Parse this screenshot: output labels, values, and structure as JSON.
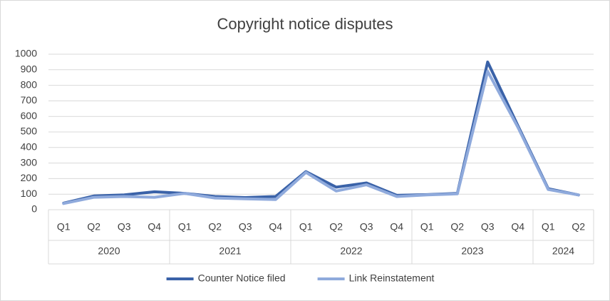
{
  "chart_data": {
    "type": "line",
    "title": "Copyright notice disputes",
    "groups": [
      {
        "name": "2020",
        "categories": [
          "Q1",
          "Q2",
          "Q3",
          "Q4"
        ]
      },
      {
        "name": "2021",
        "categories": [
          "Q1",
          "Q2",
          "Q3",
          "Q4"
        ]
      },
      {
        "name": "2022",
        "categories": [
          "Q1",
          "Q2",
          "Q3",
          "Q4"
        ]
      },
      {
        "name": "2023",
        "categories": [
          "Q1",
          "Q2",
          "Q3",
          "Q4"
        ]
      },
      {
        "name": "2024",
        "categories": [
          "Q1",
          "Q2"
        ]
      }
    ],
    "series": [
      {
        "name": "Counter Notice filed",
        "color": "#3a62a8",
        "values": [
          42,
          88,
          95,
          115,
          105,
          85,
          78,
          85,
          245,
          145,
          172,
          92,
          97,
          105,
          950,
          540,
          135,
          95
        ]
      },
      {
        "name": "Link Reinstatement",
        "color": "#8faadc",
        "values": [
          40,
          80,
          85,
          80,
          105,
          75,
          70,
          65,
          240,
          120,
          160,
          85,
          95,
          102,
          890,
          530,
          130,
          95
        ]
      }
    ],
    "ylim": [
      0,
      1000
    ],
    "yticks": [
      0,
      100,
      200,
      300,
      400,
      500,
      600,
      700,
      800,
      900,
      1000
    ],
    "grid": true,
    "legend": "bottom"
  }
}
